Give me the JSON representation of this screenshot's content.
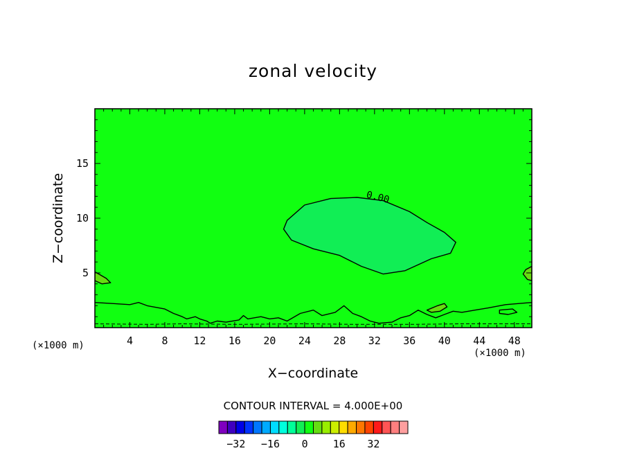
{
  "chart_data": {
    "type": "contour",
    "title": "zonal velocity",
    "xlabel": "X−coordinate",
    "ylabel": "Z−coordinate",
    "x_unit": "(×1000 m)",
    "z_unit": "(×1000 m)",
    "xlim": [
      0,
      50
    ],
    "ylim": [
      0,
      20
    ],
    "x_ticks": [
      4,
      8,
      12,
      16,
      20,
      24,
      28,
      32,
      36,
      40,
      44,
      48
    ],
    "x_tick_labels": [
      "4",
      "8",
      "12",
      "16",
      "20",
      "24",
      "28",
      "32",
      "36",
      "40",
      "44",
      "48"
    ],
    "y_ticks": [
      5,
      10,
      15
    ],
    "y_tick_labels": [
      "5",
      "10",
      "15"
    ],
    "contour_interval_label": "CONTOUR INTERVAL = 4.000E+00",
    "contour_interval": 4.0,
    "background_level_color": "#11ff11",
    "zero_contour_label": "0.00",
    "regions": [
      {
        "name": "negative-zonal-core",
        "fill": "#11ee55",
        "points": [
          [
            22.0,
            9.8
          ],
          [
            24.0,
            11.2
          ],
          [
            27.0,
            11.8
          ],
          [
            30.0,
            11.9
          ],
          [
            33.0,
            11.6
          ],
          [
            36.0,
            10.6
          ],
          [
            38.0,
            9.6
          ],
          [
            40.0,
            8.7
          ],
          [
            41.3,
            7.8
          ],
          [
            40.7,
            6.8
          ],
          [
            38.5,
            6.3
          ],
          [
            35.5,
            5.2
          ],
          [
            33.0,
            4.9
          ],
          [
            30.5,
            5.6
          ],
          [
            28.0,
            6.6
          ],
          [
            25.0,
            7.2
          ],
          [
            22.5,
            8.0
          ],
          [
            21.6,
            9.0
          ]
        ]
      },
      {
        "name": "left-edge-positive",
        "fill": "#66dd11",
        "points": [
          [
            0.0,
            5.1
          ],
          [
            1.3,
            4.5
          ],
          [
            1.8,
            4.1
          ],
          [
            0.8,
            4.0
          ],
          [
            0.0,
            4.3
          ]
        ]
      },
      {
        "name": "right-edge-positive",
        "fill": "#66dd11",
        "points": [
          [
            50.0,
            5.6
          ],
          [
            49.3,
            5.3
          ],
          [
            49.0,
            4.9
          ],
          [
            49.5,
            4.4
          ],
          [
            50.0,
            4.3
          ]
        ]
      },
      {
        "name": "surface-blob",
        "fill": "#66dd11",
        "points": [
          [
            38.0,
            1.6
          ],
          [
            39.2,
            2.0
          ],
          [
            40.0,
            2.2
          ],
          [
            40.3,
            1.9
          ],
          [
            39.5,
            1.5
          ],
          [
            38.5,
            1.4
          ]
        ]
      }
    ],
    "contour_lines": [
      {
        "level": 0,
        "style": "solid",
        "closed": true,
        "points": [
          [
            22.0,
            9.8
          ],
          [
            24.0,
            11.2
          ],
          [
            27.0,
            11.8
          ],
          [
            30.0,
            11.9
          ],
          [
            33.0,
            11.6
          ],
          [
            36.0,
            10.6
          ],
          [
            38.0,
            9.6
          ],
          [
            40.0,
            8.7
          ],
          [
            41.3,
            7.8
          ],
          [
            40.7,
            6.8
          ],
          [
            38.5,
            6.3
          ],
          [
            35.5,
            5.2
          ],
          [
            33.0,
            4.9
          ],
          [
            30.5,
            5.6
          ],
          [
            28.0,
            6.6
          ],
          [
            25.0,
            7.2
          ],
          [
            22.5,
            8.0
          ],
          [
            21.6,
            9.0
          ]
        ]
      },
      {
        "level": 0,
        "style": "solid",
        "closed": false,
        "points": [
          [
            0.0,
            2.3
          ],
          [
            2.0,
            2.2
          ],
          [
            4.0,
            2.1
          ],
          [
            5.0,
            2.3
          ],
          [
            6.0,
            2.0
          ],
          [
            8.0,
            1.7
          ],
          [
            9.0,
            1.3
          ],
          [
            10.0,
            1.0
          ],
          [
            10.5,
            0.8
          ],
          [
            11.5,
            1.0
          ],
          [
            12.0,
            0.8
          ],
          [
            12.8,
            0.6
          ],
          [
            13.2,
            0.4
          ],
          [
            14.0,
            0.6
          ],
          [
            15.0,
            0.5
          ],
          [
            16.5,
            0.7
          ],
          [
            17.0,
            1.1
          ],
          [
            17.5,
            0.8
          ],
          [
            19.0,
            1.0
          ],
          [
            20.0,
            0.8
          ],
          [
            21.0,
            0.9
          ],
          [
            22.0,
            0.6
          ],
          [
            23.5,
            1.3
          ],
          [
            25.0,
            1.6
          ],
          [
            26.0,
            1.1
          ],
          [
            27.5,
            1.4
          ],
          [
            28.5,
            2.0
          ],
          [
            29.5,
            1.3
          ],
          [
            30.5,
            1.0
          ],
          [
            31.5,
            0.6
          ],
          [
            32.5,
            0.4
          ],
          [
            34.0,
            0.5
          ],
          [
            35.0,
            0.9
          ],
          [
            36.0,
            1.1
          ],
          [
            37.0,
            1.6
          ],
          [
            38.0,
            1.2
          ],
          [
            39.0,
            0.9
          ],
          [
            40.0,
            1.2
          ],
          [
            41.0,
            1.5
          ],
          [
            42.0,
            1.4
          ],
          [
            43.5,
            1.6
          ],
          [
            45.0,
            1.8
          ],
          [
            47.0,
            2.1
          ],
          [
            50.0,
            2.3
          ]
        ]
      },
      {
        "level": 0,
        "style": "solid",
        "closed": true,
        "points": [
          [
            46.3,
            1.6
          ],
          [
            47.8,
            1.7
          ],
          [
            48.3,
            1.4
          ],
          [
            47.3,
            1.2
          ],
          [
            46.3,
            1.3
          ]
        ]
      },
      {
        "level": 0,
        "style": "solid",
        "closed": true,
        "points": [
          [
            38.0,
            1.6
          ],
          [
            39.2,
            2.0
          ],
          [
            40.0,
            2.2
          ],
          [
            40.3,
            1.9
          ],
          [
            39.5,
            1.5
          ],
          [
            38.5,
            1.4
          ]
        ]
      },
      {
        "level": 0,
        "style": "solid",
        "closed": true,
        "points": [
          [
            0.0,
            5.1
          ],
          [
            1.3,
            4.5
          ],
          [
            1.8,
            4.1
          ],
          [
            0.8,
            4.0
          ],
          [
            0.0,
            4.3
          ]
        ]
      },
      {
        "level": 0,
        "style": "solid",
        "closed": true,
        "points": [
          [
            50.0,
            5.6
          ],
          [
            49.3,
            5.3
          ],
          [
            49.0,
            4.9
          ],
          [
            49.5,
            4.4
          ],
          [
            50.0,
            4.3
          ]
        ]
      },
      {
        "level": -4,
        "style": "dashed",
        "closed": false,
        "points": [
          [
            0.0,
            0.35
          ],
          [
            6.0,
            0.3
          ],
          [
            10.0,
            0.35
          ],
          [
            16.0,
            0.3
          ],
          [
            24.0,
            0.35
          ],
          [
            30.0,
            0.3
          ],
          [
            36.0,
            0.3
          ],
          [
            42.0,
            0.35
          ],
          [
            50.0,
            0.35
          ]
        ]
      }
    ],
    "colorbar": {
      "colors": [
        "#7f00bf",
        "#3f00bf",
        "#0000e6",
        "#0033ff",
        "#0077ff",
        "#00aaff",
        "#00ddff",
        "#00ffdd",
        "#00ff99",
        "#11ee55",
        "#11ff11",
        "#66dd11",
        "#99ee00",
        "#ccee00",
        "#ffdd00",
        "#ffaa00",
        "#ff7700",
        "#ff4400",
        "#ff1a1a",
        "#ff5555",
        "#ff7f7f",
        "#ff9f9f"
      ],
      "tick_values": [
        -32,
        -16,
        0,
        16,
        32
      ],
      "tick_labels": [
        "−32",
        "−16",
        "0",
        "16",
        "32"
      ]
    }
  }
}
